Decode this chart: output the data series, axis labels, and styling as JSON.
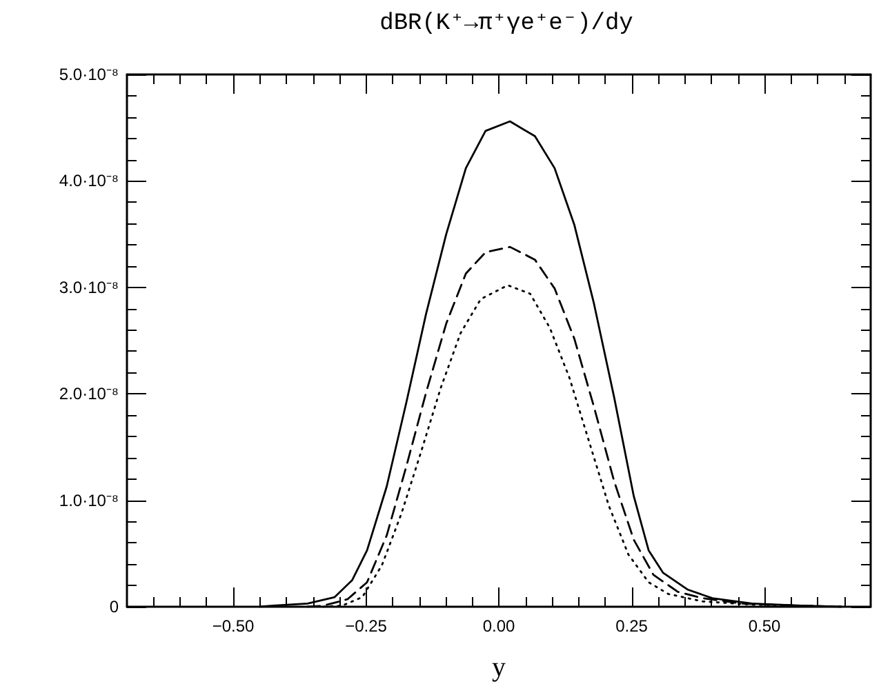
{
  "chart_data": {
    "type": "line",
    "title": "dBR(K⁺→π⁺γe⁺e⁻)/dy",
    "xlabel": "y",
    "xlim": [
      -0.7,
      0.7
    ],
    "xticks": [
      {
        "value": -0.65,
        "label": null
      },
      {
        "value": -0.6,
        "label": null
      },
      {
        "value": -0.55,
        "label": null
      },
      {
        "value": -0.5,
        "label": "−0.50"
      },
      {
        "value": -0.45,
        "label": null
      },
      {
        "value": -0.4,
        "label": null
      },
      {
        "value": -0.35,
        "label": null
      },
      {
        "value": -0.3,
        "label": null
      },
      {
        "value": -0.25,
        "label": "−0.25"
      },
      {
        "value": -0.2,
        "label": null
      },
      {
        "value": -0.15,
        "label": null
      },
      {
        "value": -0.1,
        "label": null
      },
      {
        "value": -0.05,
        "label": null
      },
      {
        "value": 0,
        "label": "0.00"
      },
      {
        "value": 0.05,
        "label": null
      },
      {
        "value": 0.1,
        "label": null
      },
      {
        "value": 0.15,
        "label": null
      },
      {
        "value": 0.2,
        "label": null
      },
      {
        "value": 0.25,
        "label": "0.25"
      },
      {
        "value": 0.3,
        "label": null
      },
      {
        "value": 0.35,
        "label": null
      },
      {
        "value": 0.4,
        "label": null
      },
      {
        "value": 0.45,
        "label": null
      },
      {
        "value": 0.5,
        "label": "0.50"
      },
      {
        "value": 0.55,
        "label": null
      },
      {
        "value": 0.6,
        "label": null
      },
      {
        "value": 0.65,
        "label": null
      }
    ],
    "ylim": [
      0,
      5e-08
    ],
    "yticks": [
      {
        "value": 0,
        "label": "0"
      },
      {
        "value": 2e-09,
        "label": null
      },
      {
        "value": 4e-09,
        "label": null
      },
      {
        "value": 6e-09,
        "label": null
      },
      {
        "value": 8e-09,
        "label": null
      },
      {
        "value": 1e-08,
        "label": "1.0·10⁻⁸"
      },
      {
        "value": 1.2e-08,
        "label": null
      },
      {
        "value": 1.4e-08,
        "label": null
      },
      {
        "value": 1.6e-08,
        "label": null
      },
      {
        "value": 1.8e-08,
        "label": null
      },
      {
        "value": 2e-08,
        "label": "2.0·10⁻⁸"
      },
      {
        "value": 2.2e-08,
        "label": null
      },
      {
        "value": 2.4e-08,
        "label": null
      },
      {
        "value": 2.6e-08,
        "label": null
      },
      {
        "value": 2.8e-08,
        "label": null
      },
      {
        "value": 3e-08,
        "label": "3.0·10⁻⁸"
      },
      {
        "value": 3.2e-08,
        "label": null
      },
      {
        "value": 3.4e-08,
        "label": null
      },
      {
        "value": 3.6e-08,
        "label": null
      },
      {
        "value": 3.8e-08,
        "label": null
      },
      {
        "value": 4e-08,
        "label": "4.0·10⁻⁸"
      },
      {
        "value": 4.2e-08,
        "label": null
      },
      {
        "value": 4.4e-08,
        "label": null
      },
      {
        "value": 4.6e-08,
        "label": null
      },
      {
        "value": 4.8e-08,
        "label": null
      },
      {
        "value": 5e-08,
        "label": "5.0·10⁻⁸"
      }
    ],
    "grid": false,
    "marker": "none",
    "series": [
      {
        "color": "#000000",
        "line_style": "solid",
        "x": [
          -0.45,
          -0.425,
          -0.36,
          -0.309,
          -0.276,
          -0.248,
          -0.211,
          -0.174,
          -0.137,
          -0.099,
          -0.062,
          -0.025,
          0.021,
          0.068,
          0.105,
          0.142,
          0.179,
          0.217,
          0.254,
          0.282,
          0.309,
          0.356,
          0.402,
          0.477,
          0.57,
          0.644
        ],
        "values": [
          0,
          1e-10,
          3e-10,
          9e-10,
          2.5e-09,
          5.3e-09,
          1.13e-08,
          1.92e-08,
          2.75e-08,
          3.5e-08,
          4.12e-08,
          4.47e-08,
          4.56e-08,
          4.42e-08,
          4.12e-08,
          3.59e-08,
          2.85e-08,
          1.97e-08,
          1.04e-08,
          5.3e-09,
          3.2e-09,
          1.6e-09,
          8e-10,
          3e-10,
          1e-10,
          0
        ]
      },
      {
        "color": "#000000",
        "line_style": "dashed",
        "x": [
          -0.36,
          -0.33,
          -0.285,
          -0.248,
          -0.211,
          -0.174,
          -0.137,
          -0.099,
          -0.062,
          -0.025,
          0.021,
          0.068,
          0.105,
          0.142,
          0.179,
          0.217,
          0.254,
          0.291,
          0.337,
          0.384,
          0.458,
          0.57,
          0.644
        ],
        "values": [
          0,
          1e-10,
          7e-10,
          2.3e-09,
          6.7e-09,
          1.32e-08,
          2.01e-08,
          2.66e-08,
          3.13e-08,
          3.33e-08,
          3.38e-08,
          3.26e-08,
          2.99e-08,
          2.52e-08,
          1.88e-08,
          1.18e-08,
          6.3e-09,
          3e-09,
          1.4e-09,
          8e-10,
          3e-10,
          1e-10,
          0
        ]
      },
      {
        "color": "#000000",
        "line_style": "dotted",
        "x": [
          -0.33,
          -0.295,
          -0.257,
          -0.22,
          -0.183,
          -0.146,
          -0.109,
          -0.072,
          -0.034,
          0.017,
          0.059,
          0.096,
          0.133,
          0.17,
          0.207,
          0.244,
          0.282,
          0.319,
          0.384,
          0.477,
          0.57,
          0.644
        ],
        "values": [
          0,
          1e-10,
          9e-10,
          3.9e-09,
          8.8e-09,
          1.46e-08,
          2.06e-08,
          2.57e-08,
          2.89e-08,
          3.02e-08,
          2.94e-08,
          2.62e-08,
          2.15e-08,
          1.55e-08,
          9.5e-09,
          4.9e-09,
          2.3e-09,
          1.2e-09,
          5e-10,
          2e-10,
          1e-10,
          0
        ]
      }
    ]
  }
}
